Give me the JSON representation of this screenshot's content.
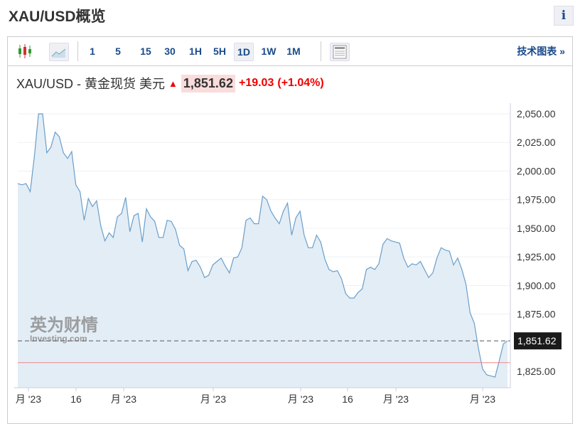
{
  "header": {
    "title": "XAU/USD概览",
    "info_label": "i"
  },
  "toolbar": {
    "intervals": [
      "1",
      "5",
      "15",
      "30",
      "1H",
      "5H",
      "1D",
      "1W",
      "1M"
    ],
    "selected": "1D",
    "tech_label": "技术图表 »"
  },
  "quote": {
    "name": "XAU/USD - 黄金现货 美元",
    "price": "1,851.62",
    "change": "+19.03",
    "change_pct": "(+1.04%)",
    "direction": "up"
  },
  "watermark": {
    "cn": "英为财情",
    "en": "Investing.com"
  },
  "colors": {
    "line": "#6a9ec9",
    "fill": "#e3edf6",
    "up": "#e00000",
    "prev_close_line": "#e88"
  },
  "chart_data": {
    "type": "area",
    "y_ticks": [
      "2,050.00",
      "2,025.00",
      "2,000.00",
      "1,975.00",
      "1,950.00",
      "1,925.00",
      "1,900.00",
      "1,875.00",
      "1,825.00"
    ],
    "ylim": [
      1812,
      2064
    ],
    "x_tick_labels": [
      "月 '23",
      "16",
      "月 '23",
      "月 '23",
      "月 '23",
      "16",
      "月 '23",
      "月 '23"
    ],
    "last_value_label": "1,851.62",
    "last_value": 1851.62,
    "prev_close": 1832.59,
    "values": [
      1989,
      1988,
      1989,
      1982,
      2013,
      2050,
      2050,
      2016,
      2021,
      2034,
      2030,
      2016,
      2011,
      2017,
      1988,
      1982,
      1957,
      1976,
      1969,
      1974,
      1952,
      1939,
      1946,
      1942,
      1960,
      1963,
      1977,
      1947,
      1961,
      1963,
      1938,
      1967,
      1960,
      1956,
      1942,
      1942,
      1957,
      1956,
      1949,
      1935,
      1932,
      1913,
      1921,
      1922,
      1916,
      1907,
      1909,
      1918,
      1921,
      1924,
      1917,
      1911,
      1924,
      1925,
      1933,
      1957,
      1959,
      1954,
      1954,
      1978,
      1975,
      1965,
      1959,
      1954,
      1965,
      1972,
      1944,
      1959,
      1965,
      1944,
      1933,
      1933,
      1944,
      1938,
      1923,
      1914,
      1912,
      1913,
      1906,
      1893,
      1889,
      1889,
      1894,
      1897,
      1914,
      1916,
      1914,
      1919,
      1936,
      1941,
      1939,
      1938,
      1937,
      1924,
      1916,
      1919,
      1918,
      1921,
      1914,
      1907,
      1911,
      1924,
      1933,
      1931,
      1930,
      1918,
      1924,
      1914,
      1901,
      1876,
      1867,
      1845,
      1827,
      1822,
      1821,
      1820,
      1834,
      1849,
      1851.62
    ]
  }
}
